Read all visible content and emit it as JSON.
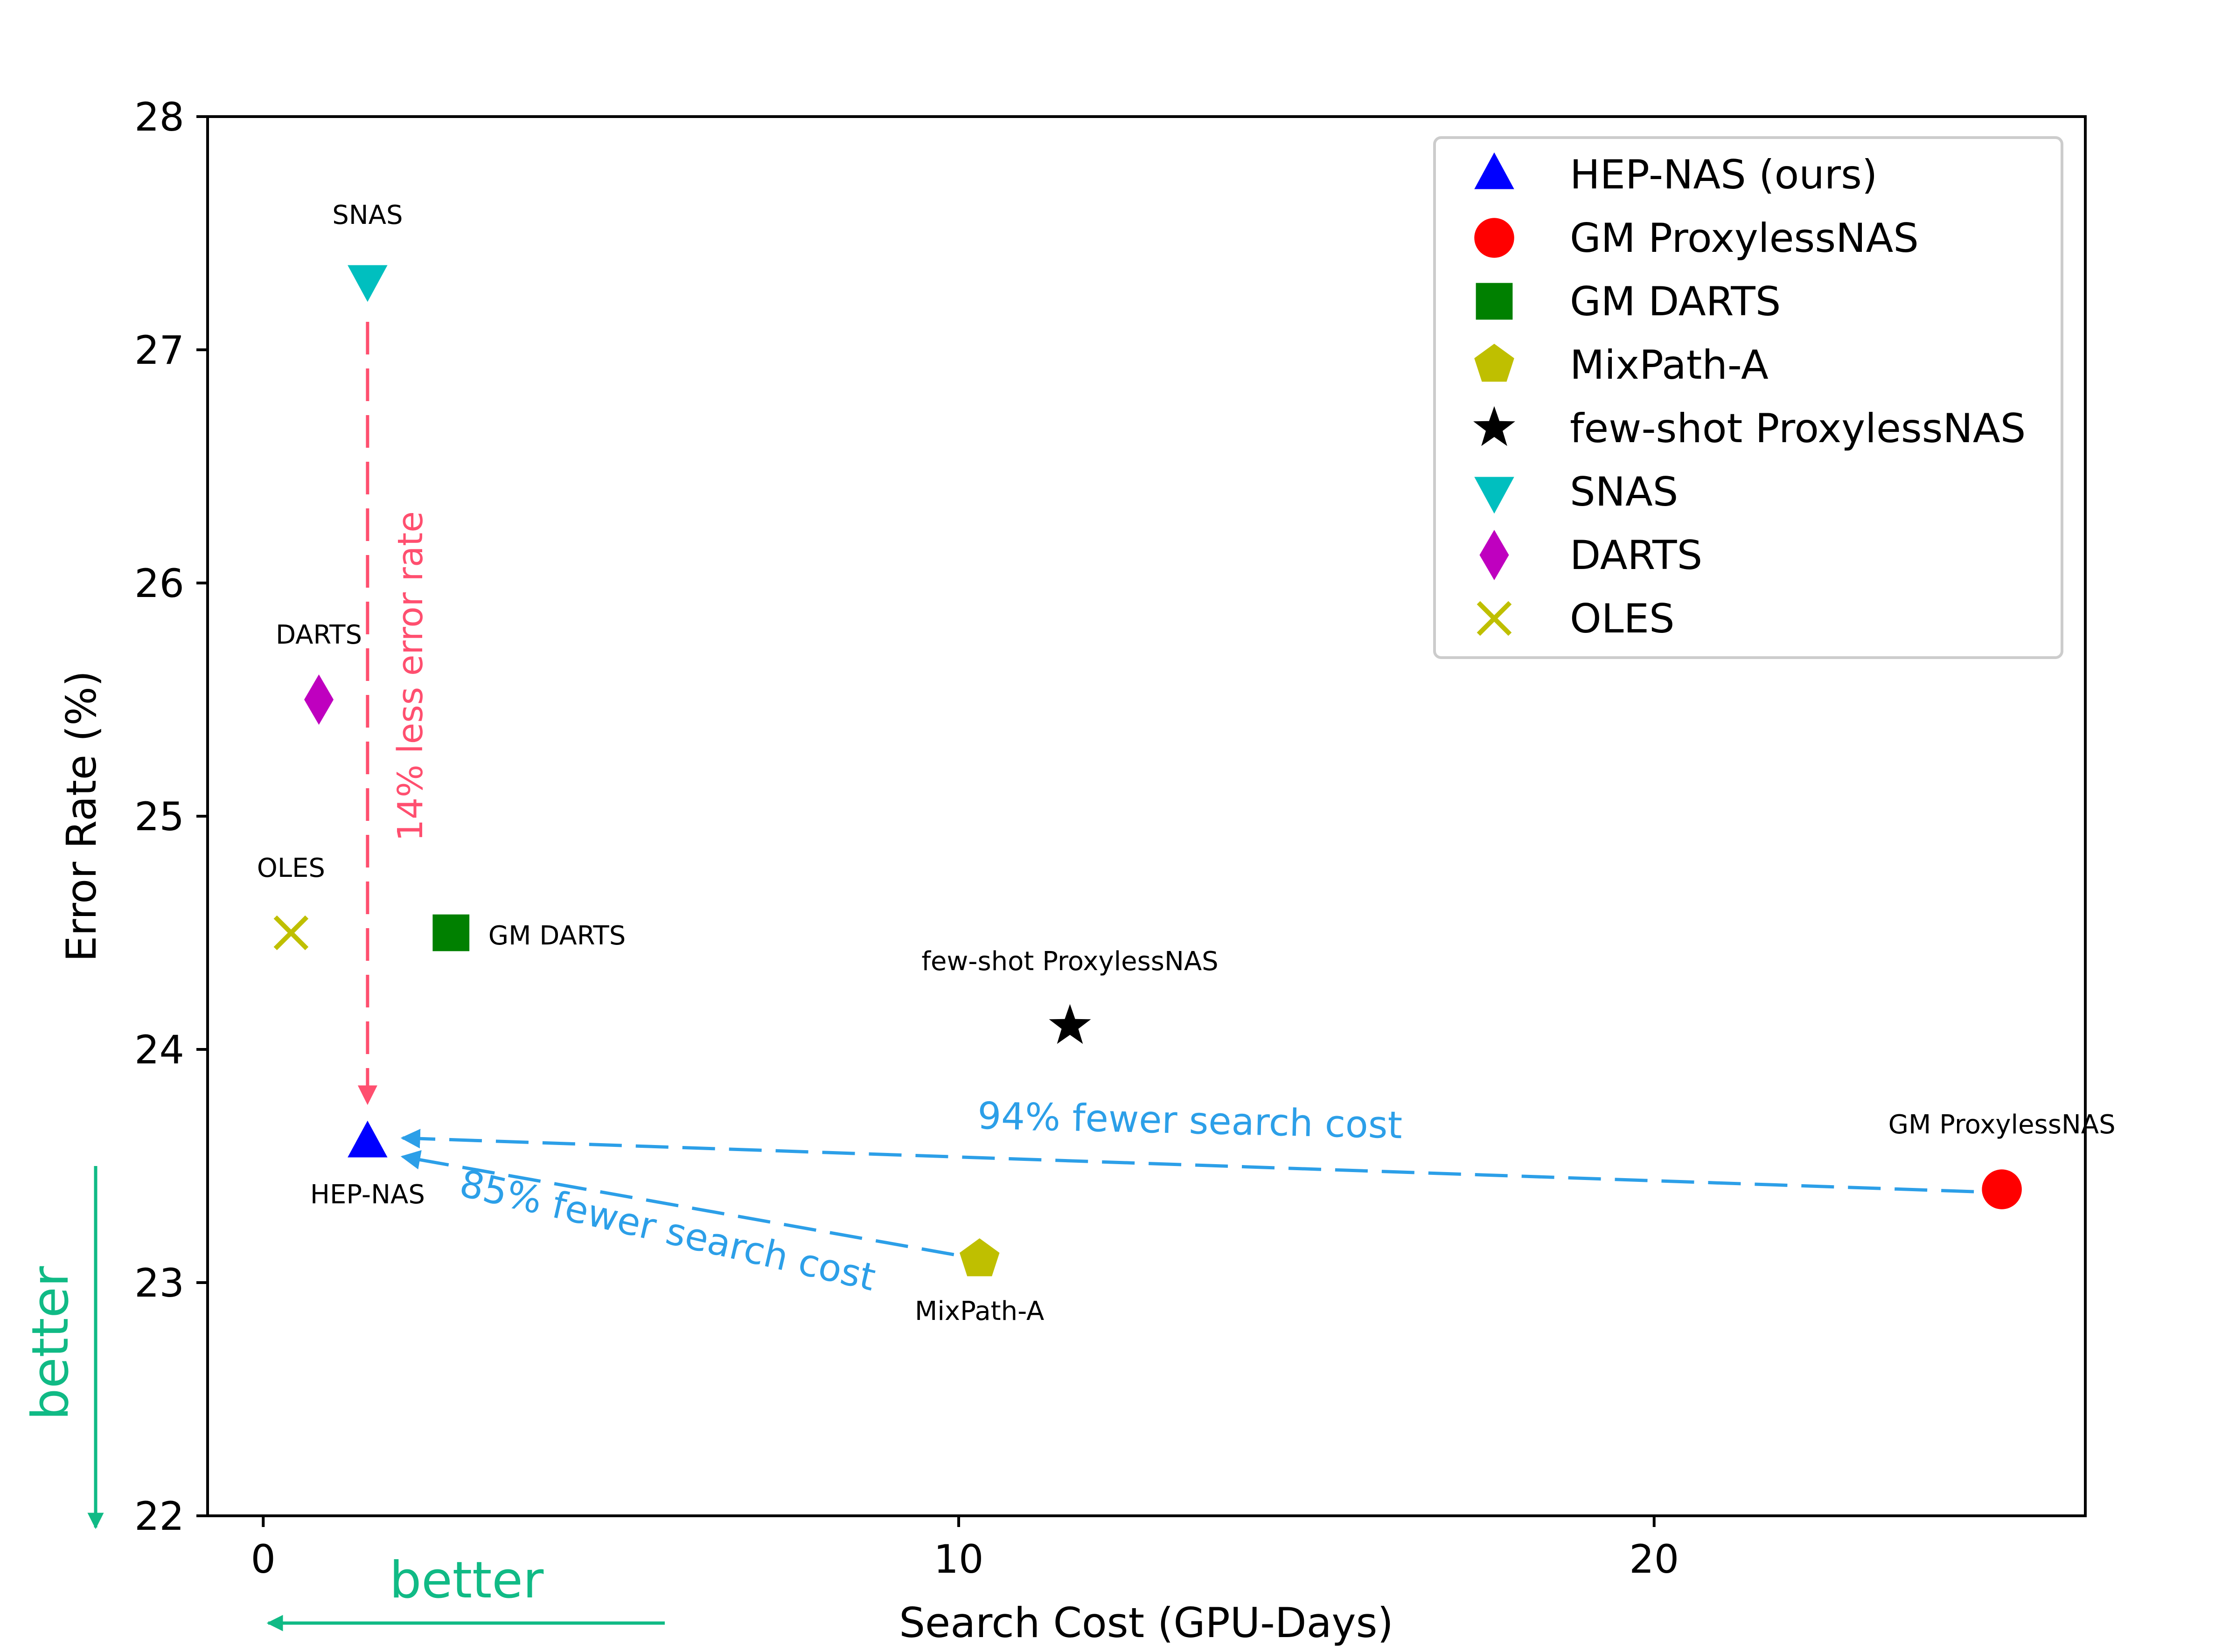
{
  "chart_data": {
    "type": "scatter",
    "title": "",
    "xlabel": "Search Cost (GPU-Days)",
    "ylabel": "Error Rate (%)",
    "xlim": [
      -0.8,
      26.2
    ],
    "ylim": [
      22,
      28
    ],
    "xticks": [
      0,
      10,
      20
    ],
    "yticks": [
      22,
      23,
      24,
      25,
      26,
      27,
      28
    ],
    "grid": false,
    "legend_position": "top-right",
    "series": [
      {
        "name": "HEP-NAS (ours)",
        "label": "HEP-NAS",
        "x": 1.5,
        "y": 23.6,
        "marker": "triangle-up",
        "color": "#0000ff",
        "label_pos": "below"
      },
      {
        "name": "GM ProxylessNAS",
        "label": "GM ProxylessNAS",
        "x": 25.0,
        "y": 23.4,
        "marker": "circle",
        "color": "#ff0000",
        "label_pos": "above"
      },
      {
        "name": "GM DARTS",
        "label": "GM DARTS",
        "x": 2.7,
        "y": 24.5,
        "marker": "square",
        "color": "#008000",
        "label_pos": "right"
      },
      {
        "name": "MixPath-A",
        "label": "MixPath-A",
        "x": 10.3,
        "y": 23.1,
        "marker": "pentagon",
        "color": "#bfbf00",
        "label_pos": "below"
      },
      {
        "name": "few-shot ProxylessNAS",
        "label": "few-shot ProxylessNAS",
        "x": 11.6,
        "y": 24.1,
        "marker": "star",
        "color": "#000000",
        "label_pos": "above"
      },
      {
        "name": "SNAS",
        "label": "SNAS",
        "x": 1.5,
        "y": 27.3,
        "marker": "triangle-down",
        "color": "#00bfbf",
        "label_pos": "above"
      },
      {
        "name": "DARTS",
        "label": "DARTS",
        "x": 0.8,
        "y": 25.5,
        "marker": "diamond",
        "color": "#bf00bf",
        "label_pos": "above"
      },
      {
        "name": "OLES",
        "label": "OLES",
        "x": 0.4,
        "y": 24.5,
        "marker": "x",
        "color": "#bfbf00",
        "label_pos": "above"
      }
    ],
    "annotations": [
      {
        "text": "14% less error rate",
        "color": "#ff4f6f"
      },
      {
        "text": "94% fewer search cost",
        "color": "#2c9fe8"
      },
      {
        "text": "85% fewer search cost",
        "color": "#2c9fe8"
      },
      {
        "text": "better",
        "color": "#10ba85"
      },
      {
        "text": "better",
        "color": "#10ba85"
      }
    ]
  }
}
